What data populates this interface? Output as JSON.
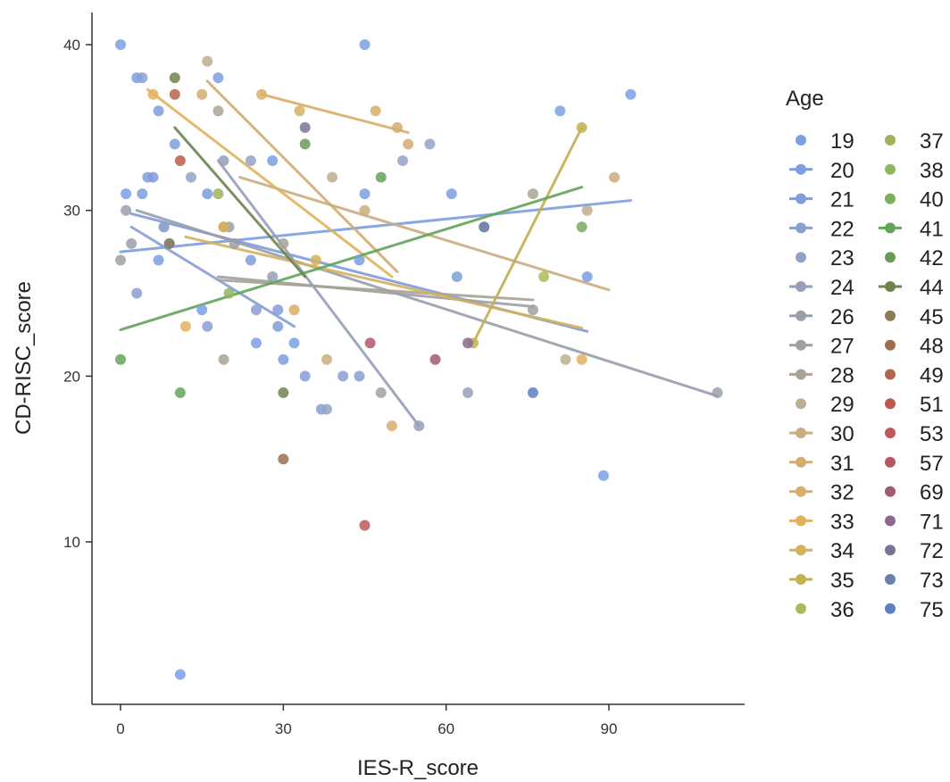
{
  "chart_data": {
    "type": "scatter",
    "title": "",
    "xlabel": "IES-R_score",
    "ylabel": "CD-RISC_score",
    "xlim": [
      -8,
      118
    ],
    "ylim": [
      0,
      42
    ],
    "xticks": [
      0,
      30,
      60,
      90
    ],
    "yticks": [
      10,
      20,
      30,
      40
    ],
    "x_tick_labels": [
      "0",
      "30",
      "60",
      "90"
    ],
    "y_tick_labels": [
      "10",
      "20",
      "30",
      "40"
    ],
    "grid": false,
    "legend": {
      "title": "Age",
      "position": "right"
    },
    "series": [
      {
        "name": "19",
        "color": "#7aa0e6",
        "points": [
          [
            0,
            40
          ],
          [
            45,
            40
          ],
          [
            94,
            37
          ],
          [
            81,
            36
          ],
          [
            1,
            31
          ],
          [
            45,
            31
          ],
          [
            9,
            28
          ],
          [
            15,
            24
          ],
          [
            25,
            22
          ],
          [
            89,
            14
          ],
          [
            11,
            2
          ],
          [
            32,
            22
          ]
        ],
        "trend": null
      },
      {
        "name": "20",
        "color": "#7c9ee0",
        "points": [
          [
            3,
            38
          ],
          [
            7,
            36
          ],
          [
            18,
            38
          ],
          [
            16,
            31
          ],
          [
            28,
            33
          ],
          [
            8,
            29
          ],
          [
            7,
            27
          ],
          [
            24,
            27
          ],
          [
            44,
            27
          ],
          [
            30,
            21
          ],
          [
            86,
            26
          ]
        ],
        "trend": [
          [
            0,
            27.5
          ],
          [
            94,
            30.6
          ]
        ]
      },
      {
        "name": "21",
        "color": "#7f9cdc",
        "points": [
          [
            6,
            32
          ],
          [
            10,
            34
          ],
          [
            4,
            31
          ],
          [
            5,
            32
          ],
          [
            29,
            24
          ],
          [
            61,
            31
          ],
          [
            62,
            26
          ],
          [
            29,
            23
          ]
        ],
        "trend": [
          [
            2,
            29.8
          ],
          [
            86,
            22.7
          ]
        ]
      },
      {
        "name": "22",
        "color": "#8a9ed4",
        "points": [
          [
            4,
            38
          ],
          [
            3,
            25
          ],
          [
            16,
            23
          ],
          [
            25,
            24
          ],
          [
            34,
            20
          ],
          [
            41,
            20
          ],
          [
            44,
            20
          ],
          [
            37,
            18
          ]
        ],
        "trend": [
          [
            2,
            29
          ],
          [
            32,
            23
          ]
        ]
      },
      {
        "name": "23",
        "color": "#93a3c7",
        "points": [
          [
            8,
            29
          ],
          [
            13,
            32
          ],
          [
            24,
            33
          ],
          [
            52,
            33
          ],
          [
            57,
            34
          ],
          [
            67,
            29
          ],
          [
            38,
            18
          ]
        ],
        "trend": null
      },
      {
        "name": "24",
        "color": "#959fb6",
        "points": [
          [
            19,
            33
          ],
          [
            28,
            26
          ],
          [
            55,
            17
          ],
          [
            64,
            19
          ]
        ],
        "trend": [
          [
            18,
            33
          ],
          [
            55,
            17
          ]
        ]
      },
      {
        "name": "26",
        "color": "#999fab",
        "points": [
          [
            1,
            30
          ],
          [
            2,
            28
          ],
          [
            21,
            28
          ],
          [
            110,
            19
          ]
        ],
        "trend": [
          [
            3,
            30
          ],
          [
            110,
            18.8
          ]
        ]
      },
      {
        "name": "27",
        "color": "#9fa0a2",
        "points": [
          [
            0,
            27
          ],
          [
            20,
            29
          ],
          [
            48,
            19
          ],
          [
            76,
            24
          ]
        ],
        "trend": [
          [
            18,
            26
          ],
          [
            76,
            24.2
          ]
        ]
      },
      {
        "name": "28",
        "color": "#a9a395",
        "points": [
          [
            18,
            36
          ],
          [
            30,
            28
          ],
          [
            19,
            21
          ],
          [
            76,
            31
          ]
        ],
        "trend": [
          [
            18,
            25.8
          ],
          [
            76,
            24.6
          ]
        ]
      },
      {
        "name": "29",
        "color": "#bcae8e",
        "points": [
          [
            16,
            39
          ],
          [
            39,
            32
          ],
          [
            82,
            21
          ],
          [
            86,
            30
          ]
        ],
        "trend": null
      },
      {
        "name": "30",
        "color": "#c9ad7f",
        "points": [
          [
            19,
            29
          ],
          [
            38,
            21
          ],
          [
            45,
            30
          ],
          [
            91,
            32
          ]
        ],
        "trend": [
          [
            22,
            32
          ],
          [
            90,
            25.2
          ]
        ]
      },
      {
        "name": "31",
        "color": "#d1ad72",
        "points": [
          [
            15,
            37
          ],
          [
            51,
            35
          ],
          [
            53,
            34
          ]
        ],
        "trend": [
          [
            16,
            37.8
          ],
          [
            51,
            26.3
          ]
        ]
      },
      {
        "name": "32",
        "color": "#d9ae68",
        "points": [
          [
            26,
            37
          ],
          [
            33,
            36
          ],
          [
            47,
            36
          ],
          [
            32,
            24
          ],
          [
            50,
            17
          ]
        ],
        "trend": [
          [
            26,
            37
          ],
          [
            53,
            34.7
          ]
        ]
      },
      {
        "name": "33",
        "color": "#e0b25e",
        "points": [
          [
            6,
            37
          ],
          [
            12,
            23
          ],
          [
            85,
            21
          ]
        ],
        "trend": [
          [
            5,
            37.3
          ],
          [
            50,
            26
          ]
        ]
      },
      {
        "name": "34",
        "color": "#d4b15b",
        "points": [
          [
            19,
            29
          ],
          [
            36,
            27
          ]
        ],
        "trend": [
          [
            12,
            28.4
          ],
          [
            85,
            22.9
          ]
        ]
      },
      {
        "name": "35",
        "color": "#c2b052",
        "points": [
          [
            65,
            22
          ],
          [
            85,
            35
          ]
        ],
        "trend": [
          [
            65,
            22
          ],
          [
            85,
            35
          ]
        ]
      },
      {
        "name": "36",
        "color": "#aeba5a",
        "points": [
          [
            78,
            26
          ]
        ],
        "trend": null
      },
      {
        "name": "37",
        "color": "#9fb35c",
        "points": [
          [
            18,
            31
          ]
        ],
        "trend": null
      },
      {
        "name": "38",
        "color": "#8fb65e",
        "points": [
          [
            20,
            25
          ]
        ],
        "trend": null
      },
      {
        "name": "40",
        "color": "#7aad5c",
        "points": [
          [
            85,
            29
          ]
        ],
        "trend": null
      },
      {
        "name": "41",
        "color": "#64a45a",
        "points": [
          [
            0,
            21
          ],
          [
            11,
            19
          ],
          [
            48,
            32
          ]
        ],
        "trend": [
          [
            0,
            22.8
          ],
          [
            85,
            31.4
          ]
        ]
      },
      {
        "name": "42",
        "color": "#6b9b58",
        "points": [
          [
            34,
            34
          ]
        ],
        "trend": null
      },
      {
        "name": "44",
        "color": "#6f8551",
        "points": [
          [
            10,
            38
          ],
          [
            30,
            19
          ]
        ],
        "trend": [
          [
            10,
            35
          ],
          [
            34,
            26
          ]
        ]
      },
      {
        "name": "45",
        "color": "#8a7d55",
        "points": [
          [
            9,
            28
          ]
        ],
        "trend": null
      },
      {
        "name": "48",
        "color": "#9c6e4c",
        "points": [
          [
            30,
            15
          ]
        ],
        "trend": null
      },
      {
        "name": "49",
        "color": "#b0654c",
        "points": [
          [
            10,
            37
          ]
        ],
        "trend": null
      },
      {
        "name": "51",
        "color": "#bd5a4f",
        "points": [
          [
            11,
            33
          ]
        ],
        "trend": null
      },
      {
        "name": "53",
        "color": "#c0575a",
        "points": [
          [
            45,
            11
          ]
        ],
        "trend": null
      },
      {
        "name": "57",
        "color": "#b55764",
        "points": [
          [
            46,
            22
          ]
        ],
        "trend": null
      },
      {
        "name": "69",
        "color": "#9e5c6e",
        "points": [
          [
            58,
            21
          ]
        ],
        "trend": null
      },
      {
        "name": "71",
        "color": "#8d6a8d",
        "points": [
          [
            64,
            22
          ]
        ],
        "trend": null
      },
      {
        "name": "72",
        "color": "#7a7395",
        "points": [
          [
            34,
            35
          ]
        ],
        "trend": null
      },
      {
        "name": "73",
        "color": "#6d80a8",
        "points": [
          [
            67,
            29
          ]
        ],
        "trend": null
      },
      {
        "name": "75",
        "color": "#5d80c2",
        "points": [
          [
            76,
            19
          ]
        ],
        "trend": null
      }
    ]
  }
}
